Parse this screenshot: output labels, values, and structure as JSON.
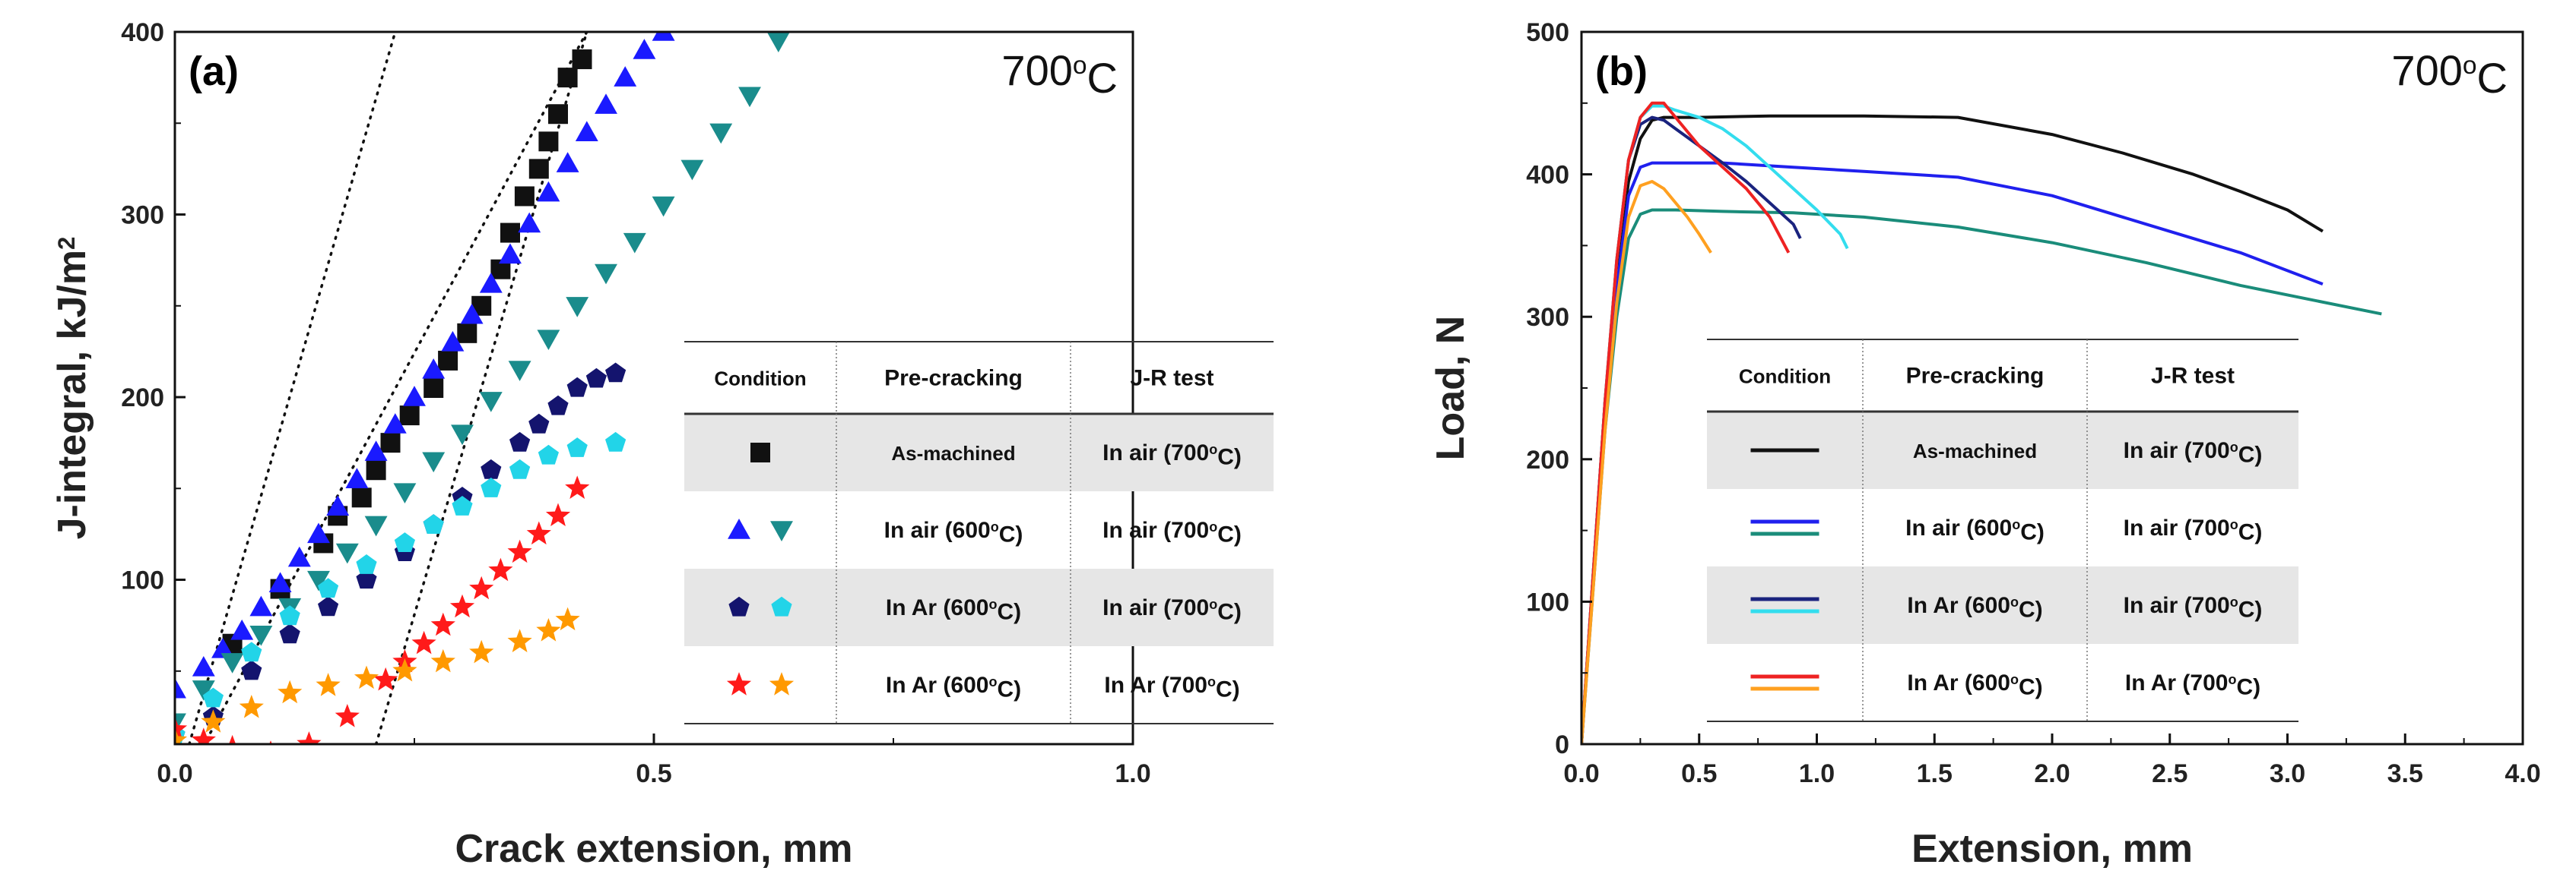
{
  "chart_data": [
    {
      "id": "a",
      "type": "scatter",
      "panel_label": "(a)",
      "temperature_label": "700",
      "temperature_sup": "o",
      "temperature_unit": "C",
      "xlabel": "Crack extension, mm",
      "ylabel": "J-integral, kJ/m",
      "ylabel_sup": "2",
      "xlim": [
        0.0,
        1.0
      ],
      "ylim": [
        10,
        400
      ],
      "xticks": [
        "0.0",
        "0.5",
        "1.0"
      ],
      "yticks": [
        "100",
        "200",
        "300",
        "400"
      ],
      "xtick_values": [
        0.0,
        0.5,
        1.0
      ],
      "ytick_values": [
        100,
        200,
        300,
        400
      ],
      "construction_lines": [
        {
          "x": [
            0.015,
            0.23
          ],
          "y": [
            10,
            400
          ]
        },
        {
          "x": [
            0.0,
            0.43
          ],
          "y": [
            -20,
            400
          ]
        },
        {
          "x": [
            0.21,
            0.43
          ],
          "y": [
            10,
            400
          ]
        }
      ],
      "series": [
        {
          "name": "As-machined / In air (700oC)",
          "marker": "square",
          "color": "#111111",
          "x": [
            0.06,
            0.11,
            0.155,
            0.17,
            0.195,
            0.21,
            0.225,
            0.245,
            0.27,
            0.285,
            0.305,
            0.32,
            0.34,
            0.35,
            0.365,
            0.38,
            0.39,
            0.4,
            0.41,
            0.425
          ],
          "y": [
            65,
            95,
            120,
            135,
            145,
            160,
            175,
            190,
            205,
            220,
            235,
            250,
            270,
            290,
            310,
            325,
            340,
            355,
            375,
            385
          ]
        },
        {
          "name": "In air (600oC) / In air (700oC) - pre",
          "marker": "triangle-up",
          "color": "#1a1aff",
          "x": [
            0.0,
            0.03,
            0.05,
            0.07,
            0.09,
            0.11,
            0.13,
            0.15,
            0.17,
            0.19,
            0.21,
            0.23,
            0.25,
            0.27,
            0.29,
            0.31,
            0.33,
            0.35,
            0.37,
            0.39,
            0.41,
            0.43,
            0.45,
            0.47,
            0.49,
            0.51
          ],
          "y": [
            40,
            52,
            62,
            72,
            85,
            98,
            112,
            125,
            140,
            155,
            170,
            185,
            200,
            215,
            230,
            245,
            262,
            278,
            295,
            312,
            328,
            345,
            360,
            375,
            390,
            400
          ]
        },
        {
          "name": "In air (600oC) / In air (700oC) - test",
          "marker": "triangle-down",
          "color": "#1a8c8c",
          "x": [
            0.0,
            0.03,
            0.06,
            0.09,
            0.12,
            0.15,
            0.18,
            0.21,
            0.24,
            0.27,
            0.3,
            0.33,
            0.36,
            0.39,
            0.42,
            0.45,
            0.48,
            0.51,
            0.54,
            0.57,
            0.6,
            0.63
          ],
          "y": [
            22,
            40,
            55,
            70,
            85,
            100,
            115,
            130,
            148,
            165,
            180,
            198,
            215,
            232,
            250,
            268,
            285,
            305,
            325,
            345,
            365,
            395
          ]
        },
        {
          "name": "In Ar (600oC) / In air (700oC) - pre",
          "marker": "pentagon",
          "color": "#14146e",
          "x": [
            0.0,
            0.04,
            0.08,
            0.12,
            0.16,
            0.2,
            0.24,
            0.27,
            0.3,
            0.33,
            0.36,
            0.38,
            0.4,
            0.42,
            0.44,
            0.46
          ],
          "y": [
            15,
            25,
            50,
            70,
            85,
            100,
            115,
            130,
            145,
            160,
            175,
            185,
            195,
            205,
            210,
            213
          ]
        },
        {
          "name": "In Ar (600oC) / In air (700oC) - test",
          "marker": "pentagon",
          "color": "#22d4e8",
          "x": [
            0.0,
            0.04,
            0.08,
            0.12,
            0.16,
            0.2,
            0.24,
            0.27,
            0.3,
            0.33,
            0.36,
            0.39,
            0.42,
            0.46
          ],
          "y": [
            15,
            35,
            60,
            80,
            95,
            108,
            120,
            130,
            140,
            150,
            160,
            168,
            172,
            175
          ]
        },
        {
          "name": "In Ar (600oC) / In Ar (700oC) - pre",
          "marker": "star",
          "color": "#ff1a1a",
          "x": [
            0.0,
            0.03,
            0.06,
            0.1,
            0.14,
            0.18,
            0.22,
            0.24,
            0.26,
            0.28,
            0.3,
            0.32,
            0.34,
            0.36,
            0.38,
            0.4,
            0.42
          ],
          "y": [
            18,
            12,
            8,
            5,
            10,
            25,
            45,
            55,
            65,
            75,
            85,
            95,
            105,
            115,
            125,
            135,
            150
          ]
        },
        {
          "name": "In Ar (600oC) / In Ar (700oC) - test",
          "marker": "star",
          "color": "#ff9900",
          "x": [
            0.0,
            0.04,
            0.08,
            0.12,
            0.16,
            0.2,
            0.24,
            0.28,
            0.32,
            0.36,
            0.39,
            0.41
          ],
          "y": [
            12,
            22,
            30,
            38,
            42,
            46,
            50,
            55,
            60,
            66,
            72,
            78
          ]
        }
      ],
      "legend_table": {
        "headers": [
          "Condition",
          "Pre-cracking",
          "J-R test"
        ],
        "rows": [
          {
            "pre": "As-machined",
            "test_main": "In air (700",
            "test_sup": "o",
            "test_end": "C)",
            "pre_sup": "",
            "pre_end": "",
            "shaded": true
          },
          {
            "pre": "In air (600",
            "pre_sup": "o",
            "pre_end": "C)",
            "test_main": "In air (700",
            "test_sup": "o",
            "test_end": "C)",
            "shaded": false
          },
          {
            "pre": "In Ar (600",
            "pre_sup": "o",
            "pre_end": "C)",
            "test_main": "In air (700",
            "test_sup": "o",
            "test_end": "C)",
            "shaded": true
          },
          {
            "pre": "In Ar (600",
            "pre_sup": "o",
            "pre_end": "C)",
            "test_main": "In Ar (700",
            "test_sup": "o",
            "test_end": "C)",
            "shaded": false
          }
        ]
      }
    },
    {
      "id": "b",
      "type": "line",
      "panel_label": "(b)",
      "temperature_label": "700",
      "temperature_sup": "o",
      "temperature_unit": "C",
      "xlabel": "Extension, mm",
      "ylabel": "Load, N",
      "xlim": [
        0.0,
        4.0
      ],
      "ylim": [
        0,
        500
      ],
      "xticks": [
        "0.0",
        "0.5",
        "1.0",
        "1.5",
        "2.0",
        "2.5",
        "3.0",
        "3.5",
        "4.0"
      ],
      "yticks": [
        "0",
        "100",
        "200",
        "300",
        "400",
        "500"
      ],
      "xtick_values": [
        0.0,
        0.5,
        1.0,
        1.5,
        2.0,
        2.5,
        3.0,
        3.5,
        4.0
      ],
      "ytick_values": [
        0,
        100,
        200,
        300,
        400,
        500
      ],
      "series": [
        {
          "name": "As-machined / In air (700oC)",
          "color": "#111111",
          "x": [
            0.0,
            0.05,
            0.1,
            0.15,
            0.2,
            0.25,
            0.3,
            0.35,
            0.5,
            0.8,
            1.2,
            1.6,
            2.0,
            2.3,
            2.6,
            2.8,
            3.0,
            3.15
          ],
          "y": [
            0,
            120,
            240,
            330,
            395,
            425,
            438,
            440,
            440,
            441,
            441,
            440,
            428,
            415,
            400,
            388,
            375,
            360
          ]
        },
        {
          "name": "In air (600oC) / In air (700oC) - pre",
          "color": "#2020ee",
          "x": [
            0.0,
            0.05,
            0.1,
            0.15,
            0.2,
            0.25,
            0.3,
            0.4,
            0.6,
            0.9,
            1.2,
            1.6,
            2.0,
            2.4,
            2.8,
            3.15
          ],
          "y": [
            0,
            115,
            230,
            320,
            385,
            405,
            408,
            408,
            408,
            405,
            402,
            398,
            385,
            365,
            345,
            323
          ]
        },
        {
          "name": "In air (600oC) / In air (700oC) - test",
          "color": "#1a8c7a",
          "x": [
            0.0,
            0.05,
            0.1,
            0.15,
            0.2,
            0.25,
            0.3,
            0.4,
            0.6,
            0.9,
            1.2,
            1.6,
            2.0,
            2.4,
            2.8,
            3.1,
            3.4
          ],
          "y": [
            0,
            110,
            220,
            300,
            355,
            372,
            375,
            375,
            374,
            373,
            370,
            363,
            352,
            338,
            322,
            312,
            302
          ]
        },
        {
          "name": "In Ar (600oC) / In air (700oC) - pre",
          "color": "#1a237e",
          "x": [
            0.0,
            0.05,
            0.1,
            0.15,
            0.2,
            0.25,
            0.3,
            0.35,
            0.4,
            0.5,
            0.6,
            0.7,
            0.8,
            0.9,
            0.93
          ],
          "y": [
            0,
            120,
            240,
            340,
            410,
            435,
            440,
            438,
            432,
            420,
            408,
            395,
            380,
            365,
            355
          ]
        },
        {
          "name": "In Ar (600oC) / In air (700oC) - test",
          "color": "#33ddee",
          "x": [
            0.0,
            0.05,
            0.1,
            0.15,
            0.2,
            0.25,
            0.3,
            0.35,
            0.4,
            0.5,
            0.6,
            0.7,
            0.8,
            0.9,
            1.0,
            1.1,
            1.13
          ],
          "y": [
            0,
            120,
            240,
            340,
            410,
            440,
            448,
            448,
            445,
            440,
            432,
            420,
            405,
            390,
            375,
            358,
            348
          ]
        },
        {
          "name": "In Ar (600oC) / In Ar (700oC) - pre",
          "color": "#ee2222",
          "x": [
            0.0,
            0.05,
            0.1,
            0.15,
            0.2,
            0.25,
            0.3,
            0.35,
            0.4,
            0.5,
            0.6,
            0.7,
            0.8,
            0.88
          ],
          "y": [
            0,
            120,
            240,
            340,
            410,
            440,
            450,
            450,
            440,
            420,
            405,
            390,
            370,
            345
          ]
        },
        {
          "name": "In Ar (600oC) / In Ar (700oC) - test",
          "color": "#ffa020",
          "x": [
            0.0,
            0.05,
            0.1,
            0.15,
            0.2,
            0.25,
            0.3,
            0.35,
            0.4,
            0.45,
            0.5,
            0.55
          ],
          "y": [
            0,
            110,
            220,
            310,
            370,
            392,
            395,
            390,
            380,
            370,
            358,
            345
          ]
        }
      ],
      "legend_table": {
        "headers": [
          "Condition",
          "Pre-cracking",
          "J-R test"
        ],
        "rows": [
          {
            "pre": "As-machined",
            "test_main": "In air (700",
            "test_sup": "o",
            "test_end": "C)",
            "pre_sup": "",
            "pre_end": "",
            "shaded": true
          },
          {
            "pre": "In air (600",
            "pre_sup": "o",
            "pre_end": "C)",
            "test_main": "In air (700",
            "test_sup": "o",
            "test_end": "C)",
            "shaded": false
          },
          {
            "pre": "In Ar (600",
            "pre_sup": "o",
            "pre_end": "C)",
            "test_main": "In air (700",
            "test_sup": "o",
            "test_end": "C)",
            "shaded": true
          },
          {
            "pre": "In Ar (600",
            "pre_sup": "o",
            "pre_end": "C)",
            "test_main": "In Ar (700",
            "test_sup": "o",
            "test_end": "C)",
            "shaded": false
          }
        ]
      }
    }
  ]
}
